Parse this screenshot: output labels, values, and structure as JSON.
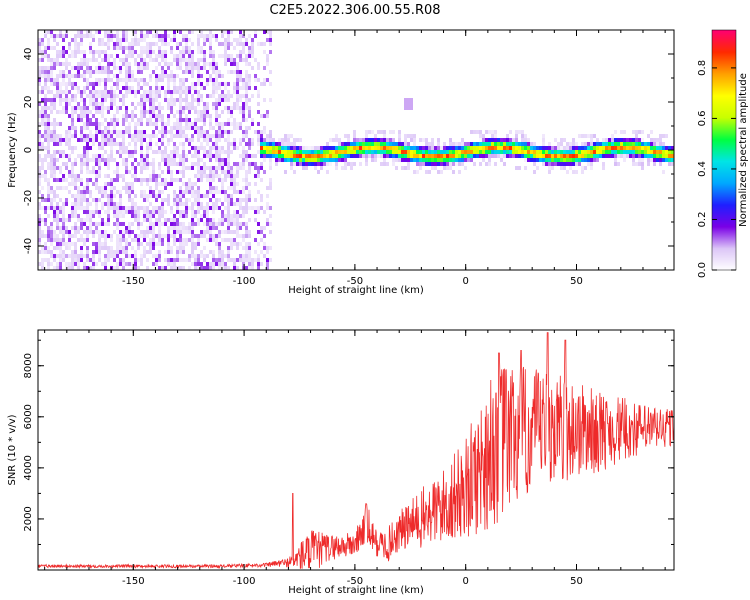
{
  "title": "C2E5.2022.306.00.55.R08",
  "chart_data": [
    {
      "type": "heatmap",
      "xlabel": "Height of straight line (km)",
      "ylabel": "Frequency (Hz)",
      "xlim": [
        -193,
        94
      ],
      "ylim": [
        -50,
        50
      ],
      "xticks": [
        -150,
        -100,
        -50,
        0,
        50
      ],
      "yticks": [
        -40,
        -20,
        0,
        20,
        40
      ],
      "grid": false,
      "colorbar": {
        "label": "Normalized spectral amplitude",
        "range": [
          0,
          0.95
        ],
        "ticks": [
          "0.0",
          "0.2",
          "0.4",
          "0.6",
          "0.8"
        ],
        "colors": [
          "#ffffff",
          "#dcc6f7",
          "#7a00e6",
          "#1f1fff",
          "#00a8ff",
          "#00e5e5",
          "#00ff40",
          "#c8ff00",
          "#ffff00",
          "#ffa000",
          "#ff2a00",
          "#ff0070"
        ]
      },
      "features": {
        "noise_region_x": [
          -193,
          -88
        ],
        "signal_band_x": [
          -93,
          94
        ],
        "signal_center_hz": 0,
        "signal_halfwidth_hz": 4,
        "blob_x": -27,
        "blob_hz": 20
      }
    },
    {
      "type": "line",
      "xlabel": "Height of straight line (km)",
      "ylabel": "SNR (10 * v/v)",
      "xlim": [
        -193,
        94
      ],
      "ylim": [
        0,
        9400
      ],
      "xticks": [
        -150,
        -100,
        -50,
        0,
        50
      ],
      "yticks": [
        2000,
        4000,
        6000,
        8000
      ],
      "grid": false,
      "color": "#ee2a2a",
      "envelope": {
        "x": [
          -193,
          -110,
          -90,
          -80,
          -75,
          -70,
          -60,
          -50,
          -45,
          -40,
          -35,
          -30,
          -20,
          -10,
          0,
          5,
          10,
          15,
          20,
          30,
          40,
          50,
          60,
          70,
          80,
          94
        ],
        "mid": [
          150,
          150,
          200,
          300,
          500,
          700,
          900,
          1000,
          1800,
          1000,
          1000,
          1500,
          2000,
          2500,
          3200,
          3800,
          4500,
          5000,
          5200,
          5400,
          5600,
          5500,
          5400,
          5500,
          5500,
          5600
        ],
        "amp": [
          60,
          60,
          80,
          200,
          600,
          900,
          500,
          500,
          900,
          500,
          700,
          800,
          1200,
          1500,
          2000,
          2500,
          3000,
          3200,
          3000,
          2500,
          2200,
          2000,
          1600,
          1300,
          1000,
          800
        ]
      },
      "peaks": [
        {
          "x": -78,
          "y": 3000
        },
        {
          "x": -45,
          "y": 2600
        },
        {
          "x": 15,
          "y": 8500
        },
        {
          "x": 25,
          "y": 8600
        },
        {
          "x": 37,
          "y": 9300
        },
        {
          "x": 45,
          "y": 9000
        }
      ]
    }
  ]
}
